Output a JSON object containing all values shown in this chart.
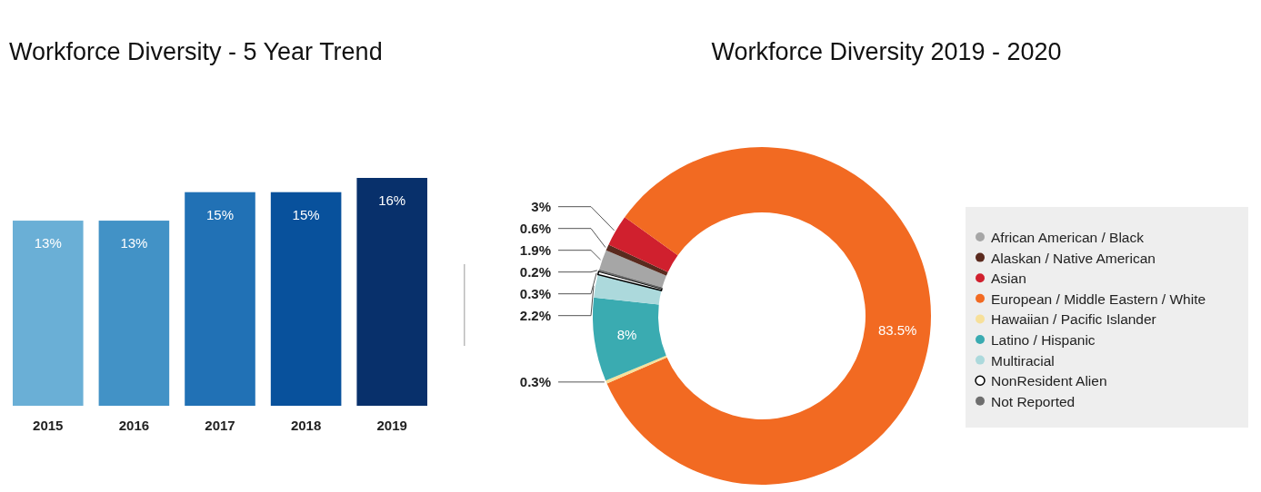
{
  "chart_data": [
    {
      "type": "bar",
      "title": "Workforce Diversity - 5 Year Trend",
      "categories": [
        "2015",
        "2016",
        "2017",
        "2018",
        "2019"
      ],
      "values": [
        13,
        13,
        15,
        15,
        16
      ],
      "value_labels": [
        "13%",
        "13%",
        "15%",
        "15%",
        "16%"
      ],
      "colors": [
        "#6aafd6",
        "#4292c6",
        "#2171b5",
        "#08519c",
        "#08306b"
      ]
    },
    {
      "type": "donut",
      "title": "Workforce Diversity 2019 - 2020",
      "legend": "right",
      "categories": [
        "African American / Black",
        "Alaskan / Native American",
        "Asian",
        "European / Middle Eastern / White",
        "Hawaiian / Pacific Islander",
        "Latino / Hispanic",
        "Multiracial",
        "NonResident Alien",
        "Not Reported"
      ],
      "values": [
        1.9,
        0.6,
        3,
        83.5,
        0.3,
        8,
        2.2,
        0.3,
        0.2
      ],
      "value_labels": [
        "1.9%",
        "0.6%",
        "3%",
        "83.5%",
        "0.3%",
        "8%",
        "2.2%",
        "0.3%",
        "0.2%"
      ],
      "colors": [
        "#a6a6a6",
        "#5a2a1e",
        "#d0202e",
        "#f26a22",
        "#f7e09a",
        "#3aabb1",
        "#acd9dc",
        "#ffffff",
        "#6e6e6e"
      ]
    }
  ]
}
